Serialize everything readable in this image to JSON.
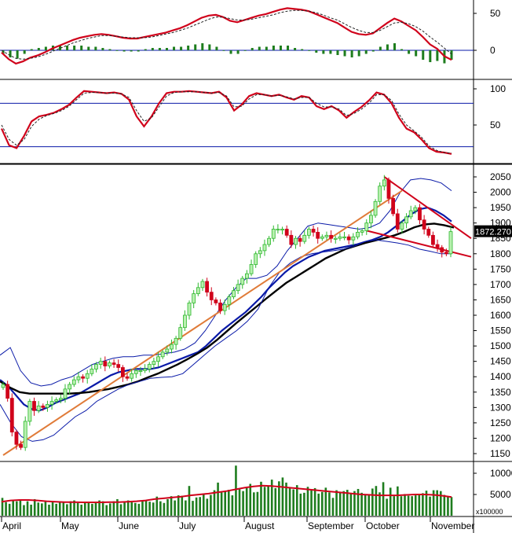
{
  "chart_data": [
    {
      "type": "line",
      "panel": "macd",
      "y_ticks": [
        0,
        50
      ],
      "ylim": [
        -20,
        62
      ],
      "series": [
        {
          "role": "line",
          "color": "#d0021b",
          "values": [
            -3,
            -12,
            -18,
            -15,
            -10,
            -7,
            -3,
            2,
            6,
            10,
            14,
            17,
            19,
            21,
            22,
            21,
            19,
            17,
            16,
            16,
            18,
            20,
            22,
            24,
            27,
            30,
            34,
            39,
            44,
            47,
            48,
            45,
            40,
            38,
            41,
            44,
            47,
            49,
            52,
            55,
            57,
            56,
            55,
            53,
            49,
            45,
            41,
            37,
            31,
            25,
            22,
            21,
            23,
            30,
            37,
            43,
            39,
            33,
            27,
            18,
            8,
            2,
            -8,
            -13
          ]
        },
        {
          "role": "signal",
          "color": "#222222",
          "dashed": true,
          "values": [
            0,
            -6,
            -11,
            -12,
            -11,
            -9,
            -6,
            -2,
            2,
            6,
            10,
            13,
            16,
            18,
            20,
            20,
            19,
            18,
            17,
            17,
            17,
            18,
            20,
            22,
            24,
            27,
            30,
            34,
            38,
            42,
            45,
            45,
            43,
            41,
            41,
            42,
            44,
            46,
            48,
            51,
            53,
            54,
            54,
            53,
            51,
            48,
            44,
            41,
            36,
            31,
            27,
            24,
            24,
            27,
            32,
            37,
            38,
            36,
            32,
            26,
            18,
            11,
            3,
            -5
          ]
        }
      ],
      "histogram_color": "#1e7d1e"
    },
    {
      "type": "line",
      "panel": "stochastic",
      "y_ticks": [
        50,
        100
      ],
      "ylim": [
        5,
        105
      ],
      "reference_lines": [
        80,
        20
      ],
      "series": [
        {
          "role": "k",
          "color": "#d0021b",
          "values": [
            45,
            22,
            18,
            35,
            55,
            62,
            64,
            67,
            72,
            78,
            88,
            97,
            96,
            95,
            94,
            95,
            93,
            85,
            62,
            48,
            62,
            80,
            94,
            96,
            96,
            97,
            96,
            95,
            94,
            96,
            88,
            70,
            78,
            90,
            94,
            92,
            90,
            92,
            88,
            85,
            90,
            88,
            76,
            72,
            76,
            70,
            60,
            68,
            75,
            84,
            95,
            92,
            80,
            60,
            45,
            40,
            30,
            18,
            13,
            12,
            10
          ]
        },
        {
          "role": "d",
          "color": "#222222",
          "dashed": true,
          "values": [
            50,
            30,
            22,
            30,
            48,
            58,
            63,
            66,
            70,
            76,
            85,
            94,
            95,
            95,
            94,
            94,
            93,
            88,
            70,
            55,
            60,
            75,
            90,
            95,
            96,
            96,
            96,
            95,
            94,
            95,
            90,
            75,
            76,
            86,
            92,
            92,
            90,
            91,
            89,
            86,
            88,
            88,
            80,
            75,
            75,
            72,
            63,
            66,
            72,
            80,
            92,
            92,
            84,
            65,
            50,
            42,
            33,
            21,
            15,
            12,
            11
          ]
        }
      ]
    },
    {
      "type": "candlestick",
      "panel": "price",
      "ylim": [
        1130,
        2080
      ],
      "y_ticks": [
        1150,
        1200,
        1250,
        1300,
        1350,
        1400,
        1450,
        1500,
        1550,
        1600,
        1650,
        1700,
        1750,
        1800,
        1850,
        1900,
        1950,
        2000,
        2050
      ],
      "x_labels": [
        "April",
        "May",
        "June",
        "July",
        "August",
        "September",
        "October",
        "November"
      ],
      "last_price_label": "1872.270",
      "up_color": "#2db82d",
      "down_color": "#d0021b",
      "close": [
        1375,
        1330,
        1220,
        1180,
        1170,
        1255,
        1320,
        1290,
        1305,
        1300,
        1310,
        1320,
        1325,
        1330,
        1360,
        1375,
        1390,
        1400,
        1395,
        1410,
        1425,
        1440,
        1450,
        1435,
        1445,
        1440,
        1430,
        1400,
        1395,
        1410,
        1420,
        1420,
        1425,
        1440,
        1450,
        1465,
        1480,
        1490,
        1505,
        1525,
        1560,
        1600,
        1640,
        1670,
        1690,
        1710,
        1675,
        1650,
        1640,
        1615,
        1635,
        1660,
        1680,
        1700,
        1720,
        1735,
        1765,
        1800,
        1810,
        1830,
        1850,
        1880,
        1880,
        1880,
        1860,
        1830,
        1850,
        1840,
        1860,
        1880,
        1870,
        1850,
        1855,
        1860,
        1850,
        1850,
        1855,
        1855,
        1845,
        1855,
        1870,
        1875,
        1900,
        1925,
        1970,
        2020,
        2040,
        1980,
        1930,
        1880,
        1900,
        1920,
        1940,
        1950,
        1910,
        1880,
        1860,
        1830,
        1820,
        1805,
        1800,
        1872
      ],
      "series": [
        {
          "name": "MA20",
          "color": "#0a1aa8",
          "values": [
            1390,
            1370,
            1340,
            1310,
            1295,
            1290,
            1300,
            1315,
            1325,
            1335,
            1345,
            1360,
            1375,
            1390,
            1405,
            1415,
            1420,
            1425,
            1425,
            1425,
            1430,
            1440,
            1450,
            1460,
            1470,
            1480,
            1500,
            1525,
            1550,
            1570,
            1590,
            1610,
            1635,
            1660,
            1690,
            1715,
            1740,
            1760,
            1775,
            1790,
            1800,
            1810,
            1815,
            1820,
            1825,
            1830,
            1838,
            1845,
            1855,
            1870,
            1890,
            1910,
            1930,
            1945,
            1950,
            1940,
            1925,
            1905
          ]
        },
        {
          "name": "MA50",
          "color": "#000000",
          "values": [
            1385,
            1365,
            1350,
            1345,
            1345,
            1345,
            1345,
            1345,
            1347,
            1350,
            1355,
            1360,
            1367,
            1375,
            1385,
            1398,
            1410,
            1425,
            1440,
            1457,
            1475,
            1495,
            1520,
            1548,
            1576,
            1602,
            1628,
            1655,
            1680,
            1705,
            1725,
            1745,
            1765,
            1785,
            1800,
            1815,
            1825,
            1835,
            1843,
            1851,
            1860,
            1872,
            1886,
            1895,
            1898,
            1893,
            1885
          ]
        },
        {
          "name": "BB upper",
          "color": "#0a1aa8",
          "values": [
            1470,
            1495,
            1420,
            1380,
            1370,
            1375,
            1390,
            1400,
            1420,
            1440,
            1450,
            1460,
            1465,
            1465,
            1470,
            1470,
            1475,
            1480,
            1490,
            1510,
            1550,
            1600,
            1650,
            1690,
            1720,
            1720,
            1730,
            1760,
            1810,
            1850,
            1890,
            1900,
            1895,
            1890,
            1885,
            1880,
            1885,
            1900,
            1940,
            2000,
            2040,
            2045,
            2040,
            2030,
            2005
          ]
        },
        {
          "name": "BB lower",
          "color": "#0a1aa8",
          "values": [
            1310,
            1250,
            1205,
            1190,
            1195,
            1210,
            1240,
            1270,
            1290,
            1320,
            1340,
            1360,
            1375,
            1385,
            1395,
            1398,
            1400,
            1410,
            1440,
            1470,
            1500,
            1525,
            1550,
            1580,
            1620,
            1690,
            1740,
            1770,
            1790,
            1800,
            1805,
            1810,
            1815,
            1825,
            1840,
            1845,
            1840,
            1835,
            1828,
            1815,
            1808,
            1800,
            1800
          ]
        }
      ],
      "trendlines": [
        {
          "color": "#e07b39",
          "from": [
            0,
            1145
          ],
          "to": [
            90,
            2005
          ]
        },
        {
          "color": "#d0021b",
          "from": [
            86,
            2050
          ],
          "to": [
            100,
            1850
          ]
        },
        {
          "color": "#d0021b",
          "from": [
            82,
            1875
          ],
          "to": [
            100,
            1790
          ]
        }
      ]
    },
    {
      "type": "bar",
      "panel": "volume",
      "ylim": [
        0,
        12500
      ],
      "y_ticks": [
        5000,
        10000
      ],
      "unit_label": "x100000",
      "bar_color": "#1e7d1e",
      "values": [
        4200,
        3200,
        2800,
        3600,
        3400,
        3800,
        2500,
        3400,
        2600,
        3900,
        3100,
        2900,
        3500,
        2600,
        3200,
        2800,
        3300,
        3100,
        2700,
        3400,
        3600,
        3000,
        2600,
        3000,
        3100,
        2800,
        3200,
        3600,
        3400,
        2500,
        2900,
        3400,
        3900,
        2700,
        3300,
        3600,
        3200,
        3000,
        2800,
        3500,
        3600,
        3300,
        3100,
        4500,
        3400,
        3000,
        3900,
        4600,
        3600,
        4800,
        4700,
        3600,
        7000,
        3500,
        4300,
        4400,
        5200,
        4000,
        4900,
        6000,
        7800,
        5500,
        5800,
        6100,
        4800,
        11800,
        6200,
        5800,
        6500,
        7500,
        5500,
        5600,
        8000,
        6800,
        6900,
        8500,
        6500,
        8100,
        9000,
        7800,
        6500,
        6200,
        7200,
        5200,
        5400,
        6800,
        6000,
        6500,
        5200,
        5600,
        6600,
        5500,
        4200,
        6000,
        5400,
        5800,
        6100,
        5200,
        5800,
        6300,
        5400,
        5100,
        4800,
        6400,
        7000,
        5500,
        7900,
        4000,
        6600,
        4600,
        6900,
        4600,
        5100,
        4700,
        4600,
        4800,
        5000,
        5300,
        5900,
        4500,
        6000,
        6000,
        5800,
        4900,
        4600,
        4400
      ],
      "series": [
        {
          "name": "volume MA",
          "color": "#d0021b",
          "values": [
            3300,
            3600,
            3700,
            3700,
            3600,
            3400,
            3300,
            3200,
            3200,
            3150,
            3150,
            3150,
            3200,
            3200,
            3300,
            3400,
            3600,
            3900,
            4100,
            4300,
            4500,
            4800,
            5000,
            5200,
            5500,
            5800,
            6200,
            6600,
            6900,
            7100,
            7000,
            6800,
            6600,
            6400,
            6200,
            6000,
            5800,
            5600,
            5400,
            5200,
            5000,
            4900,
            4800,
            4800,
            4800,
            4900,
            5000,
            5000,
            4900,
            4700,
            4400
          ]
        }
      ]
    }
  ]
}
